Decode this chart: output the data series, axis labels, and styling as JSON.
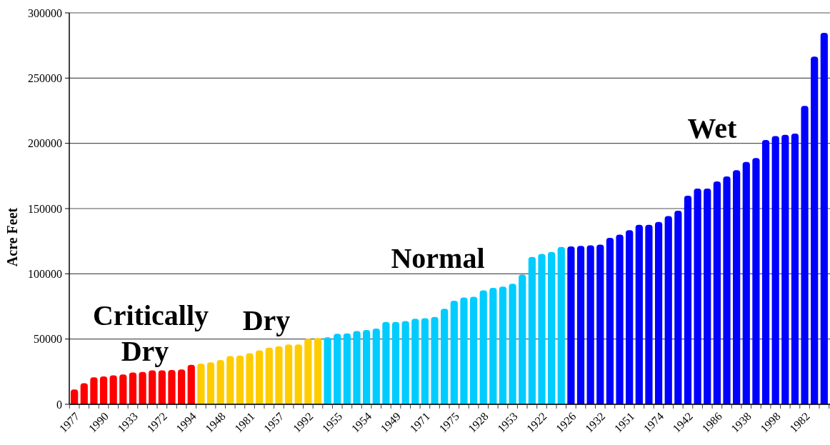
{
  "chart_data": {
    "type": "bar",
    "ylabel": "Acre Feet",
    "categories": [
      "1977",
      null,
      null,
      "1990",
      null,
      null,
      "1933",
      null,
      null,
      "1972",
      null,
      null,
      "1994",
      null,
      null,
      "1948",
      null,
      null,
      "1981",
      null,
      null,
      "1957",
      null,
      null,
      "1992",
      null,
      null,
      "1955",
      null,
      null,
      "1954",
      null,
      null,
      "1949",
      null,
      null,
      "1971",
      null,
      null,
      "1975",
      null,
      null,
      "1928",
      null,
      null,
      "1953",
      null,
      null,
      "1922",
      null,
      null,
      "1926",
      null,
      null,
      "1932",
      null,
      null,
      "1951",
      null,
      null,
      "1974",
      null,
      null,
      "1942",
      null,
      null,
      "1986",
      null,
      null,
      "1938",
      null,
      null,
      "1998",
      null,
      null,
      "1982",
      null,
      null
    ],
    "values": [
      11400,
      16100,
      20600,
      21400,
      22200,
      22900,
      24400,
      24800,
      26000,
      26000,
      26300,
      26700,
      30300,
      31200,
      32200,
      33900,
      36900,
      37300,
      39200,
      41300,
      43400,
      44500,
      45800,
      45800,
      50400,
      50800,
      51300,
      54000,
      54400,
      56100,
      57000,
      58000,
      63100,
      63100,
      63800,
      65500,
      65900,
      66900,
      73200,
      79400,
      81800,
      82400,
      87300,
      89200,
      90200,
      92400,
      99400,
      112900,
      115300,
      116700,
      120600,
      121000,
      121400,
      121800,
      122400,
      127600,
      130000,
      133500,
      137500,
      137600,
      139800,
      144300,
      148400,
      159800,
      165300,
      165300,
      170800,
      174700,
      179400,
      185700,
      188800,
      202500,
      205500,
      206500,
      207500,
      228700,
      266500,
      284700
    ],
    "colors": [
      "#ff0000",
      "#ff0000",
      "#ff0000",
      "#ff0000",
      "#ff0000",
      "#ff0000",
      "#ff0000",
      "#ff0000",
      "#ff0000",
      "#ff0000",
      "#ff0000",
      "#ff0000",
      "#ff0000",
      "#ffcc00",
      "#ffcc00",
      "#ffcc00",
      "#ffcc00",
      "#ffcc00",
      "#ffcc00",
      "#ffcc00",
      "#ffcc00",
      "#ffcc00",
      "#ffcc00",
      "#ffcc00",
      "#ffcc00",
      "#ffcc00",
      "#00ccff",
      "#00ccff",
      "#00ccff",
      "#00ccff",
      "#00ccff",
      "#00ccff",
      "#00ccff",
      "#00ccff",
      "#00ccff",
      "#00ccff",
      "#00ccff",
      "#00ccff",
      "#00ccff",
      "#00ccff",
      "#00ccff",
      "#00ccff",
      "#00ccff",
      "#00ccff",
      "#00ccff",
      "#00ccff",
      "#00ccff",
      "#00ccff",
      "#00ccff",
      "#00ccff",
      "#00ccff",
      "#0000ff",
      "#0000ff",
      "#0000ff",
      "#0000ff",
      "#0000ff",
      "#0000ff",
      "#0000ff",
      "#0000ff",
      "#0000ff",
      "#0000ff",
      "#0000ff",
      "#0000ff",
      "#0000ff",
      "#0000ff",
      "#0000ff",
      "#0000ff",
      "#0000ff",
      "#0000ff",
      "#0000ff",
      "#0000ff",
      "#0000ff",
      "#0000ff",
      "#0000ff",
      "#0000ff",
      "#0000ff",
      "#0000ff",
      "#0000ff"
    ],
    "ylim": [
      0,
      300000
    ],
    "yticks": [
      0,
      50000,
      100000,
      150000,
      200000,
      250000,
      300000
    ],
    "grid": "y",
    "annotations": [
      "Critically Dry",
      "Dry",
      "Normal",
      "Wet"
    ]
  }
}
